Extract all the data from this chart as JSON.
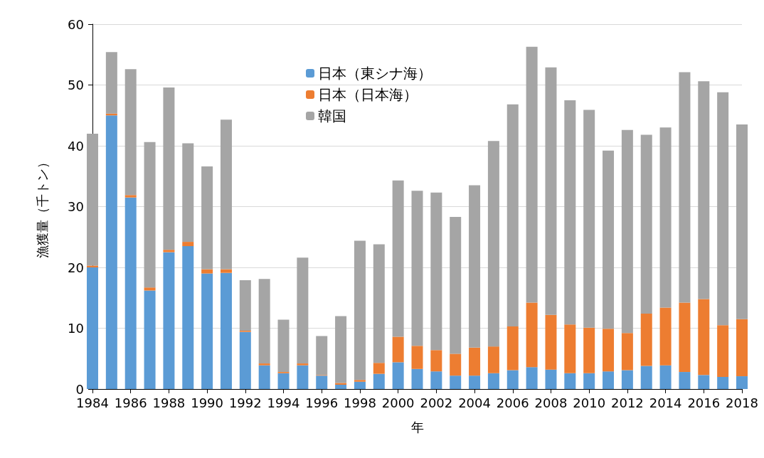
{
  "chart_data": {
    "type": "bar",
    "stacked": true,
    "xlabel": "年",
    "ylabel": "漁獲量（千トン）",
    "x": [
      1984,
      1985,
      1986,
      1987,
      1988,
      1989,
      1990,
      1991,
      1992,
      1993,
      1994,
      1995,
      1996,
      1997,
      1998,
      1999,
      2000,
      2001,
      2002,
      2003,
      2004,
      2005,
      2006,
      2007,
      2008,
      2009,
      2010,
      2011,
      2012,
      2013,
      2014,
      2015,
      2016,
      2017,
      2018
    ],
    "xlim": [
      1984,
      2018
    ],
    "xticks": [
      1984,
      1986,
      1988,
      1990,
      1992,
      1994,
      1996,
      1998,
      2000,
      2002,
      2004,
      2006,
      2008,
      2010,
      2012,
      2014,
      2016,
      2018
    ],
    "ylim": [
      0,
      60
    ],
    "yticks": [
      0,
      10,
      20,
      30,
      40,
      50,
      60
    ],
    "grid": "y",
    "legend": "top",
    "series": [
      {
        "name": "日本（東シナ海）",
        "color": "#5b9bd5",
        "values": [
          20.0,
          45.0,
          31.5,
          16.2,
          22.5,
          23.5,
          19.0,
          19.1,
          9.4,
          3.9,
          2.6,
          3.9,
          2.2,
          0.7,
          1.2,
          2.5,
          4.4,
          3.3,
          2.9,
          2.2,
          2.2,
          2.6,
          3.1,
          3.6,
          3.2,
          2.6,
          2.6,
          2.9,
          3.1,
          3.8,
          3.9,
          2.8,
          2.3,
          2.0,
          2.1
        ]
      },
      {
        "name": "日本（日本海）",
        "color": "#ed7d31",
        "values": [
          0.3,
          0.3,
          0.4,
          0.5,
          0.4,
          0.7,
          0.7,
          0.6,
          0.2,
          0.3,
          0.2,
          0.3,
          0.1,
          0.3,
          0.3,
          1.8,
          4.2,
          3.8,
          3.5,
          3.6,
          4.6,
          4.4,
          7.2,
          10.6,
          9.0,
          8.0,
          7.5,
          7.0,
          6.1,
          8.6,
          9.5,
          11.4,
          12.5,
          8.5,
          9.4
        ]
      },
      {
        "name": "韓国",
        "color": "#a5a5a5",
        "values": [
          21.7,
          10.1,
          20.7,
          23.9,
          26.7,
          16.2,
          16.9,
          24.6,
          8.3,
          13.9,
          8.6,
          17.4,
          6.4,
          11.0,
          22.9,
          19.5,
          25.7,
          25.5,
          25.9,
          22.5,
          26.7,
          33.8,
          36.5,
          42.1,
          40.7,
          36.9,
          35.8,
          29.3,
          33.4,
          29.4,
          29.6,
          37.9,
          35.8,
          38.3,
          32.0
        ]
      }
    ]
  }
}
